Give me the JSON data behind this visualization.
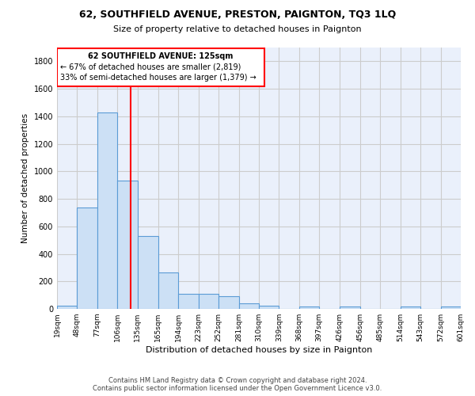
{
  "title1": "62, SOUTHFIELD AVENUE, PRESTON, PAIGNTON, TQ3 1LQ",
  "title2": "Size of property relative to detached houses in Paignton",
  "xlabel": "Distribution of detached houses by size in Paignton",
  "ylabel": "Number of detached properties",
  "footer1": "Contains HM Land Registry data © Crown copyright and database right 2024.",
  "footer2": "Contains public sector information licensed under the Open Government Licence v3.0.",
  "bar_edges": [
    19,
    48,
    77,
    106,
    135,
    165,
    194,
    223,
    252,
    281,
    310,
    339,
    368,
    397,
    426,
    456,
    485,
    514,
    543,
    572,
    601
  ],
  "bar_heights": [
    25,
    735,
    1430,
    935,
    530,
    265,
    110,
    110,
    95,
    40,
    25,
    0,
    15,
    0,
    15,
    0,
    0,
    15,
    0,
    15
  ],
  "tick_labels": [
    "19sqm",
    "48sqm",
    "77sqm",
    "106sqm",
    "135sqm",
    "165sqm",
    "194sqm",
    "223sqm",
    "252sqm",
    "281sqm",
    "310sqm",
    "339sqm",
    "368sqm",
    "397sqm",
    "426sqm",
    "456sqm",
    "485sqm",
    "514sqm",
    "543sqm",
    "572sqm",
    "601sqm"
  ],
  "bar_color": "#cce0f5",
  "bar_edge_color": "#5b9bd5",
  "vline_x": 125,
  "vline_color": "red",
  "annotation_line1": "62 SOUTHFIELD AVENUE: 125sqm",
  "annotation_line2": "← 67% of detached houses are smaller (2,819)",
  "annotation_line3": "33% of semi-detached houses are larger (1,379) →",
  "ylim": [
    0,
    1900
  ],
  "yticks": [
    0,
    200,
    400,
    600,
    800,
    1000,
    1200,
    1400,
    1600,
    1800
  ],
  "grid_color": "#cccccc",
  "bg_color": "#eaf0fb"
}
